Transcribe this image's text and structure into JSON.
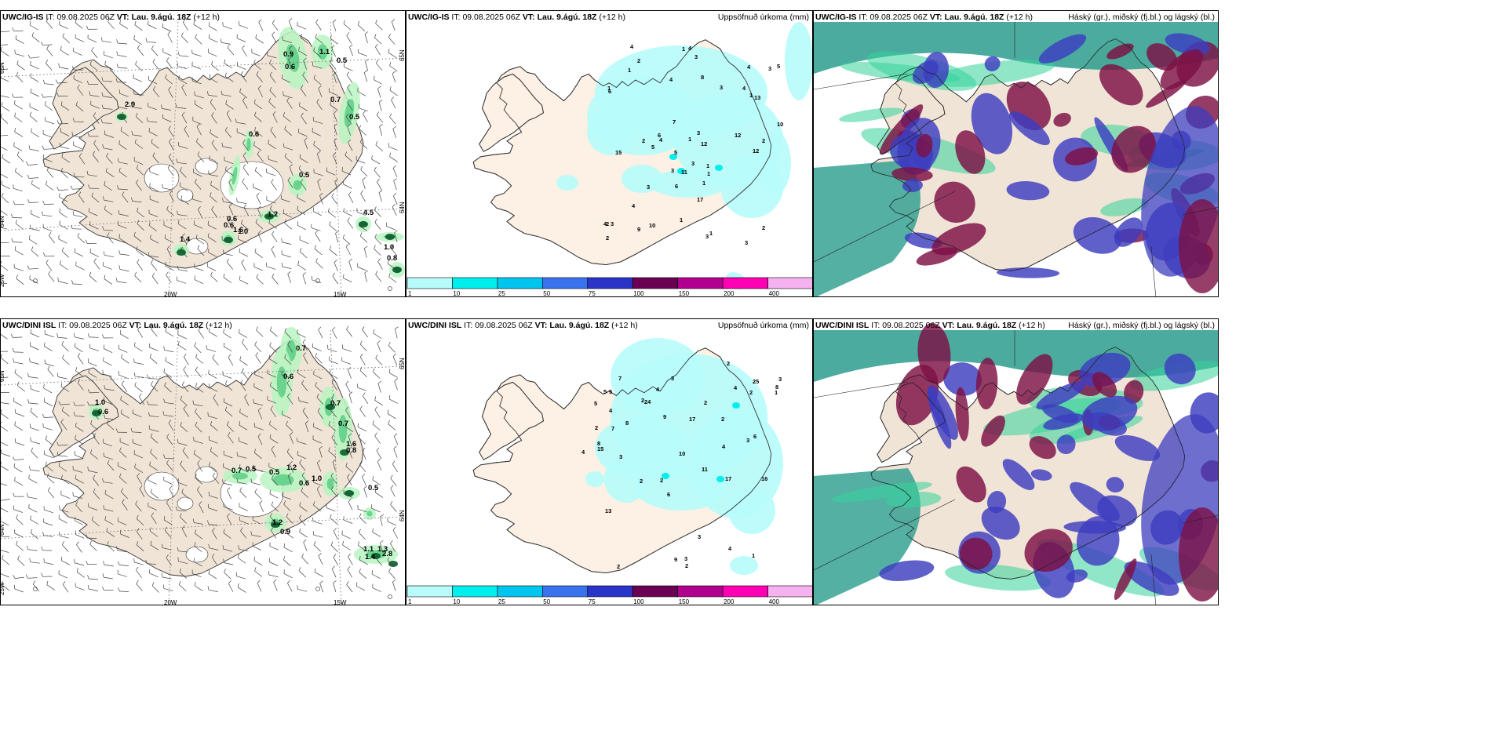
{
  "rows": [
    {
      "model": "UWC/IG-IS",
      "it_label": "IT:",
      "it_value": "09.08.2025 06Z",
      "vt_label": "VT:",
      "vt_value": "Lau. 9.ágú. 18Z",
      "lead": "(+12 h)",
      "wind_values": [
        "0.9",
        "0.6",
        "1.1",
        "0.5",
        "2.9",
        "0.7",
        "0.5",
        "0.6",
        "0.5",
        "0.6",
        "0.6",
        "1.0",
        "1.6",
        "1.2",
        "4.5",
        "1.0",
        "0.8",
        "1.4"
      ],
      "precip_values": [
        "1",
        "2",
        "4",
        "3",
        "6",
        "12",
        "9",
        "3",
        "3",
        "4",
        "2",
        "1",
        "5",
        "10",
        "3",
        "2",
        "1",
        "4",
        "3",
        "6",
        "12",
        "7",
        "3",
        "2",
        "4",
        "5",
        "4",
        "3",
        "6",
        "1",
        "4",
        "17",
        "8",
        "11",
        "5",
        "1",
        "4",
        "10",
        "15",
        "12",
        "13",
        "3",
        "1",
        "1",
        "2",
        "1",
        "3",
        "2",
        "1",
        "1",
        "3",
        "4"
      ]
    },
    {
      "model": "UWC/DINI ISL",
      "it_label": "IT:",
      "it_value": "09.08.2025 06Z",
      "vt_label": "VT:",
      "vt_value": "Lau. 9.ágú. 18Z",
      "lead": "(+12 h)",
      "wind_values": [
        "0.7",
        "0.6",
        "1.0",
        "0.6",
        "0.7",
        "0.7",
        "1.6",
        "0.8",
        "0.7",
        "0.5",
        "0.5",
        "1.2",
        "0.6",
        "1.0",
        "0.5",
        "1.1",
        "1.3",
        "1.4",
        "2.8",
        "0.9",
        "1.2"
      ],
      "precip_values": [
        "2",
        "9",
        "3",
        "17",
        "8",
        "2",
        "2",
        "6",
        "5",
        "3",
        "1",
        "3",
        "8",
        "4",
        "6",
        "7",
        "24",
        "2",
        "1",
        "3",
        "2",
        "4",
        "3",
        "4",
        "5",
        "13",
        "7",
        "9",
        "11",
        "5",
        "3",
        "4",
        "15",
        "8",
        "25",
        "17",
        "16",
        "2",
        "4",
        "4",
        "2",
        "2",
        "2",
        "10",
        "2"
      ]
    }
  ],
  "precip_title": "Uppsöfnuð úrkoma (mm)",
  "cloud_title": "Háský (gr.), miðský (fj.bl.) og lágský (bl.)",
  "colorbar": {
    "labels": [
      "1",
      "10",
      "25",
      "50",
      "75",
      "100",
      "150",
      "200",
      "400"
    ],
    "colors": [
      "#b7fcfb",
      "#00eeee",
      "#00c5ee",
      "#3a72ee",
      "#2a34c8",
      "#6a0052",
      "#b10090",
      "#ff00b4",
      "#f6b2f0"
    ]
  },
  "axis_labels": {
    "lat_top": "65N",
    "lat_bottom": "64N",
    "lon_left": "25W",
    "lon_20": "20W",
    "lon_15": "15W",
    "lat_right": "65N",
    "lat_right2": "64N"
  },
  "colors": {
    "land": "#f0e4d6",
    "land_precip": "#fdf0e4",
    "coast": "#333333",
    "green_light": "#b9f5c1",
    "green_mid": "#60d089",
    "green_dark": "#0a5a2a",
    "cloud_teal": "#2b9c8d",
    "cloud_blue": "#3d3dbf",
    "cloud_maroon": "#7c1044"
  }
}
